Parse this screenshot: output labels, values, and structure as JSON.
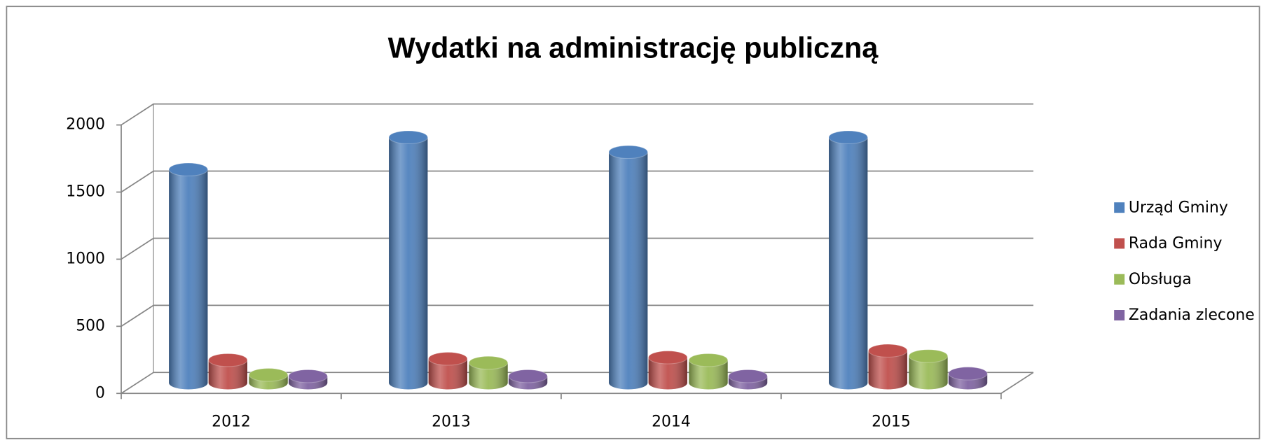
{
  "chart_data": {
    "type": "bar3d",
    "title": "Wydatki na administrację publiczną",
    "categories": [
      "2012",
      "2013",
      "2014",
      "2015"
    ],
    "series": [
      {
        "name": "Urząd Gminy",
        "color": "#4f81bd",
        "values": [
          1590,
          1830,
          1720,
          1830
        ]
      },
      {
        "name": "Rada Gminy",
        "color": "#c0504d",
        "values": [
          170,
          180,
          190,
          240
        ]
      },
      {
        "name": "Obsługa",
        "color": "#9bbb59",
        "values": [
          60,
          150,
          170,
          200
        ]
      },
      {
        "name": "Zadania zlecone",
        "color": "#8064a2",
        "values": [
          50,
          50,
          50,
          70
        ]
      }
    ],
    "ylim": [
      0,
      2000
    ],
    "yticks": [
      0,
      500,
      1000,
      1500,
      2000
    ],
    "grid": true,
    "legend": "right"
  }
}
